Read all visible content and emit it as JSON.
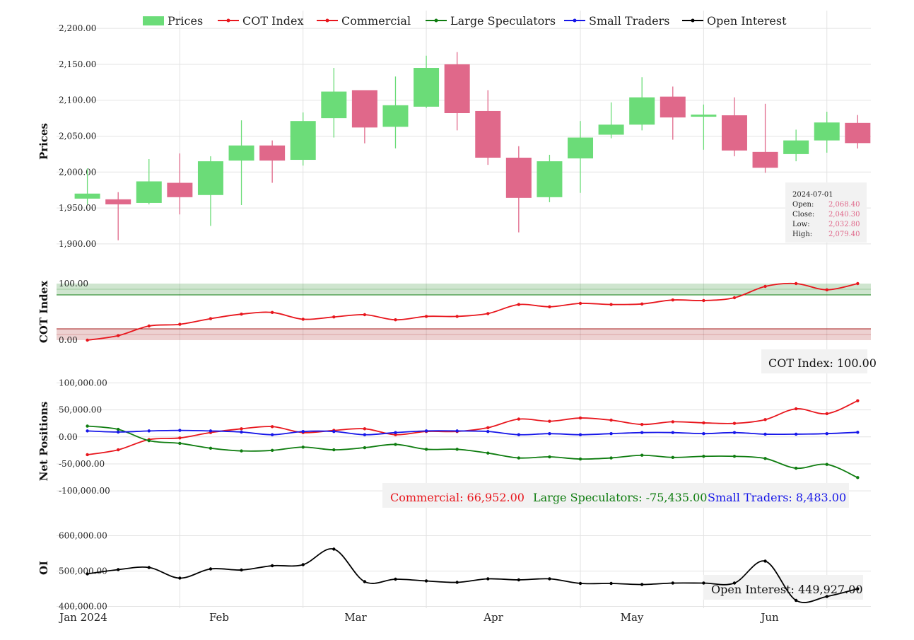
{
  "chart_data": {
    "type": "candlestick",
    "legend": {
      "placement": "top",
      "items": [
        {
          "label": "Prices",
          "kind": "box",
          "color": "#6bdc78"
        },
        {
          "label": "COT Index",
          "kind": "line",
          "color": "#e8161d"
        },
        {
          "label": "Commercial",
          "kind": "line",
          "color": "#e8161d"
        },
        {
          "label": "Large Speculators",
          "kind": "line",
          "color": "#0f7d10"
        },
        {
          "label": "Small Traders",
          "kind": "line",
          "color": "#1616e8"
        },
        {
          "label": "Open Interest",
          "kind": "line",
          "color": "#000000"
        }
      ]
    },
    "x_axis": {
      "tick_labels": [
        "Jan 2024",
        "Feb",
        "Mar",
        "Apr",
        "May",
        "Jun"
      ],
      "dates": [
        "2024-01-01",
        "2024-01-08",
        "2024-01-15",
        "2024-01-22",
        "2024-01-29",
        "2024-02-05",
        "2024-02-12",
        "2024-02-19",
        "2024-02-26",
        "2024-03-04",
        "2024-03-11",
        "2024-03-18",
        "2024-03-25",
        "2024-04-01",
        "2024-04-08",
        "2024-04-15",
        "2024-04-22",
        "2024-04-29",
        "2024-05-06",
        "2024-05-13",
        "2024-05-20",
        "2024-05-27",
        "2024-06-03",
        "2024-06-10",
        "2024-06-17",
        "2024-06-24",
        "2024-07-01"
      ],
      "range": [
        "2024-01-01",
        "2024-07-04"
      ]
    },
    "colors": {
      "up": "#6bdc78",
      "down": "#e0688a",
      "cot": "#e8161d",
      "commercial": "#e8161d",
      "large": "#0f7d10",
      "small": "#1616e8",
      "oi": "#000000"
    },
    "panels": {
      "prices": {
        "ylabel": "Prices",
        "ylim": [
          1890,
          2210
        ],
        "yticks": [
          1900,
          1950,
          2000,
          2050,
          2100,
          2150,
          2200
        ],
        "ytick_labels": [
          "1,900.00",
          "1,950.00",
          "2,000.00",
          "2,050.00",
          "2,100.00",
          "2,150.00",
          "2,200.00"
        ],
        "ohlc": [
          {
            "o": 1963,
            "h": 2005,
            "l": 1955,
            "c": 1970
          },
          {
            "o": 1962,
            "h": 1972,
            "l": 1905,
            "c": 1955
          },
          {
            "o": 1957,
            "h": 2018,
            "l": 1955,
            "c": 1987
          },
          {
            "o": 1985,
            "h": 2026,
            "l": 1941,
            "c": 1965
          },
          {
            "o": 1968,
            "h": 2022,
            "l": 1925,
            "c": 2015
          },
          {
            "o": 2016,
            "h": 2072,
            "l": 1954,
            "c": 2037
          },
          {
            "o": 2037,
            "h": 2044,
            "l": 1985,
            "c": 2016
          },
          {
            "o": 2017,
            "h": 2083,
            "l": 2009,
            "c": 2071
          },
          {
            "o": 2075,
            "h": 2145,
            "l": 2048,
            "c": 2112
          },
          {
            "o": 2114,
            "h": 2114,
            "l": 2040,
            "c": 2062
          },
          {
            "o": 2063,
            "h": 2133,
            "l": 2033,
            "c": 2093
          },
          {
            "o": 2091,
            "h": 2162,
            "l": 2089,
            "c": 2145
          },
          {
            "o": 2150,
            "h": 2167,
            "l": 2058,
            "c": 2082
          },
          {
            "o": 2085,
            "h": 2114,
            "l": 2010,
            "c": 2020
          },
          {
            "o": 2020,
            "h": 2036,
            "l": 1916,
            "c": 1964
          },
          {
            "o": 1965,
            "h": 2024,
            "l": 1958,
            "c": 2015
          },
          {
            "o": 2019,
            "h": 2071,
            "l": 1971,
            "c": 2048
          },
          {
            "o": 2052,
            "h": 2097,
            "l": 2047,
            "c": 2066
          },
          {
            "o": 2066,
            "h": 2132,
            "l": 2058,
            "c": 2104
          },
          {
            "o": 2105,
            "h": 2119,
            "l": 2045,
            "c": 2076
          },
          {
            "o": 2077,
            "h": 2094,
            "l": 2031,
            "c": 2080
          },
          {
            "o": 2079,
            "h": 2104,
            "l": 2022,
            "c": 2030
          },
          {
            "o": 2028,
            "h": 2095,
            "l": 1999,
            "c": 2006
          },
          {
            "o": 2025,
            "h": 2059,
            "l": 2015,
            "c": 2044
          },
          {
            "o": 2044,
            "h": 2084,
            "l": 2027,
            "c": 2069
          },
          {
            "o": 2068.4,
            "h": 2079.4,
            "l": 2032.8,
            "c": 2040.3
          }
        ],
        "ohlc_dates_offset": 1,
        "info_box": {
          "date": "2024-07-01",
          "rows": [
            {
              "label": "Open:",
              "value": "2,068.40"
            },
            {
              "label": "Close:",
              "value": "2,040.30"
            },
            {
              "label": "Low:",
              "value": "2,032.80"
            },
            {
              "label": "High:",
              "value": "2,079.40"
            }
          ]
        }
      },
      "cot": {
        "ylabel": "COT Index",
        "ylim": [
          0,
          100
        ],
        "ytick_labels": [
          "0.00",
          "100.00"
        ],
        "bands": [
          {
            "from": 80,
            "to": 100,
            "color": "#0f7d10"
          },
          {
            "from": 0,
            "to": 20,
            "color": "#a61b1b"
          }
        ],
        "values": [
          0,
          8,
          25,
          28,
          38,
          46,
          49,
          37,
          41,
          45,
          36,
          42,
          42,
          47,
          63,
          59,
          65,
          63,
          64,
          71,
          70,
          75,
          95,
          100,
          89,
          100
        ],
        "label": "COT Index:",
        "last_value": "100.00"
      },
      "net": {
        "ylabel": "Net Positions",
        "ylim": [
          -130000,
          115000
        ],
        "yticks": [
          -100000,
          -50000,
          0,
          50000,
          100000
        ],
        "ytick_labels": [
          "-100,000.00",
          "-50,000.00",
          "0.00",
          "50,000.00",
          "100,000.00"
        ],
        "series": [
          {
            "name": "Commercial",
            "values": [
              -33000,
              -24000,
              -5000,
              -2000,
              8000,
              15000,
              19000,
              8000,
              12000,
              15000,
              4000,
              10000,
              10000,
              17000,
              33000,
              29000,
              35000,
              31000,
              23000,
              28000,
              26000,
              25000,
              32000,
              52000,
              43000,
              66952
            ],
            "last_value": "66,952.00"
          },
          {
            "name": "Large Speculators",
            "values": [
              20000,
              14000,
              -7000,
              -12000,
              -21000,
              -26000,
              -25000,
              -19000,
              -24000,
              -20000,
              -14000,
              -23000,
              -23000,
              -30000,
              -39000,
              -37000,
              -41000,
              -39000,
              -34000,
              -38000,
              -36000,
              -36000,
              -40000,
              -58000,
              -51000,
              -75435
            ],
            "last_value": "-75,435.00"
          },
          {
            "name": "Small Traders",
            "values": [
              11000,
              9000,
              11000,
              12000,
              11000,
              9000,
              4000,
              10000,
              10000,
              4000,
              8000,
              11000,
              11000,
              10000,
              4000,
              6000,
              4000,
              6000,
              8000,
              8000,
              6000,
              8000,
              5000,
              5000,
              6000,
              8483
            ],
            "last_value": "8,483.00"
          }
        ]
      },
      "oi": {
        "ylabel": "OI",
        "ylim": [
          395000,
          625000
        ],
        "yticks": [
          400000,
          500000,
          600000
        ],
        "ytick_labels": [
          "400,000.00",
          "500,000.00",
          "600,000.00"
        ],
        "values": [
          492000,
          504000,
          510000,
          480000,
          506000,
          503000,
          515000,
          518000,
          562000,
          470000,
          477000,
          472000,
          468000,
          478000,
          475000,
          478000,
          465000,
          465000,
          462000,
          466000,
          466000,
          466000,
          528000,
          417000,
          428000,
          449927
        ],
        "label": "Open Interest:",
        "last_value": "449,927.00"
      }
    }
  }
}
